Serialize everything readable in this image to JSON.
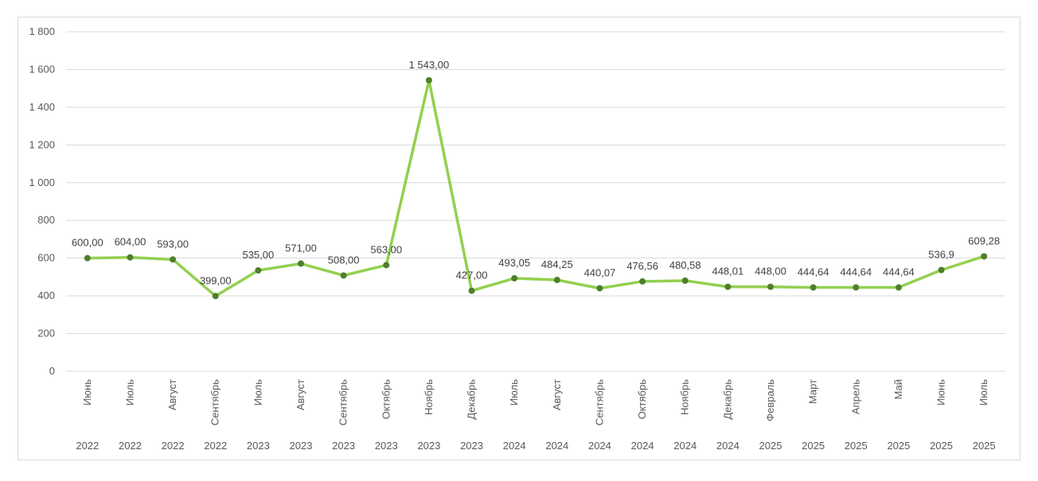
{
  "chart_data": {
    "type": "line",
    "title": "",
    "xlabel": "",
    "ylabel": "",
    "ylim": [
      0,
      1800
    ],
    "y_ticks": [
      "0",
      "200",
      "400",
      "600",
      "800",
      "1 000",
      "1 200",
      "1 400",
      "1 600",
      "1 800"
    ],
    "grid": true,
    "legend": "none",
    "colors": {
      "line": "#92d050",
      "marker": "#4e7f2d",
      "grid": "#d9d9d9"
    },
    "categories": [
      {
        "month": "Июнь",
        "year": "2022"
      },
      {
        "month": "Июль",
        "year": "2022"
      },
      {
        "month": "Август",
        "year": "2022"
      },
      {
        "month": "Сентябрь",
        "year": "2022"
      },
      {
        "month": "Июль",
        "year": "2023"
      },
      {
        "month": "Август",
        "year": "2023"
      },
      {
        "month": "Сентябрь",
        "year": "2023"
      },
      {
        "month": "Октябрь",
        "year": "2023"
      },
      {
        "month": "Ноябрь",
        "year": "2023"
      },
      {
        "month": "Декабрь",
        "year": "2023"
      },
      {
        "month": "Июль",
        "year": "2024"
      },
      {
        "month": "Август",
        "year": "2024"
      },
      {
        "month": "Сентябрь",
        "year": "2024"
      },
      {
        "month": "Октябрь",
        "year": "2024"
      },
      {
        "month": "Ноябрь",
        "year": "2024"
      },
      {
        "month": "Декабрь",
        "year": "2024"
      },
      {
        "month": "Февраль",
        "year": "2025"
      },
      {
        "month": "Март",
        "year": "2025"
      },
      {
        "month": "Апрель",
        "year": "2025"
      },
      {
        "month": "Май",
        "year": "2025"
      },
      {
        "month": "Июнь",
        "year": "2025"
      },
      {
        "month": "Июль",
        "year": "2025"
      }
    ],
    "series": [
      {
        "values": [
          600,
          604,
          593,
          399,
          535,
          571,
          508,
          563,
          1543,
          427,
          493.05,
          484.25,
          440.07,
          476.56,
          480.58,
          448.01,
          448,
          444.64,
          444.64,
          444.64,
          536.9,
          609.28
        ],
        "labels": [
          "600,00",
          "604,00",
          "593,00",
          "399,00",
          "535,00",
          "571,00",
          "508,00",
          "563,00",
          "1 543,00",
          "427,00",
          "493,05",
          "484,25",
          "440,07",
          "476,56",
          "480,58",
          "448,01",
          "448,00",
          "444,64",
          "444,64",
          "444,64",
          "536,9",
          "609,28"
        ]
      }
    ]
  }
}
